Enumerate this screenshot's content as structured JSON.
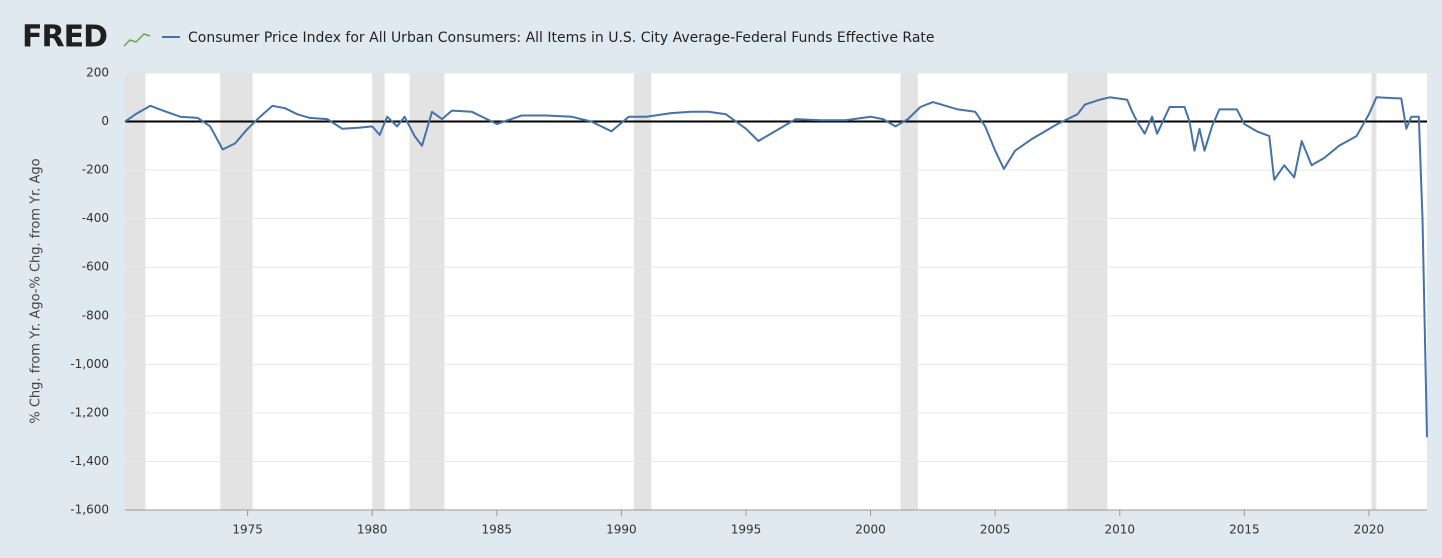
{
  "chart_data": {
    "type": "line",
    "logo": "FRED",
    "title": "Consumer Price Index for All Urban Consumers: All Items in U.S. City Average-Federal Funds Effective Rate",
    "y_label": "% Chg. from Yr. Ago-% Chg. from Yr. Ago",
    "xlim": [
      1970.08,
      2022.33
    ],
    "xticks": [
      1975,
      1980,
      1985,
      1990,
      1995,
      2000,
      2005,
      2010,
      2015,
      2020
    ],
    "ylim": [
      -1600,
      200
    ],
    "yticks": [
      200,
      0,
      -200,
      -400,
      -600,
      -800,
      {
        "value": -1000,
        "label": "-1,000"
      },
      {
        "value": -1200,
        "label": "-1,200"
      },
      {
        "value": -1400,
        "label": "-1,400"
      },
      {
        "value": -1600,
        "label": "-1,600"
      }
    ],
    "grid": true,
    "zero_line": true,
    "recessions": [
      [
        1969.9,
        1970.9
      ],
      [
        1973.9,
        1975.2
      ],
      [
        1980.0,
        1980.5
      ],
      [
        1981.5,
        1982.9
      ],
      [
        1990.5,
        1991.2
      ],
      [
        2001.2,
        2001.9
      ],
      [
        2007.9,
        2009.5
      ],
      [
        2020.1,
        2020.3
      ]
    ],
    "recession_color": "#e3e3e3",
    "series": [
      {
        "name": "Consumer Price Index for All Urban Consumers: All Items in U.S. City Average-Federal Funds Effective Rate",
        "color": "#4572a7",
        "x": [
          1970.08,
          1970.5,
          1971.1,
          1971.6,
          1972.3,
          1973.0,
          1973.5,
          1974.0,
          1974.5,
          1975.0,
          1975.5,
          1976.0,
          1976.5,
          1977.0,
          1977.5,
          1978.2,
          1978.8,
          1979.5,
          1980.0,
          1980.3,
          1980.6,
          1981.0,
          1981.3,
          1981.7,
          1982.0,
          1982.4,
          1982.8,
          1983.2,
          1984.0,
          1985.0,
          1986.0,
          1987.0,
          1988.0,
          1988.8,
          1989.6,
          1990.3,
          1991.0,
          1992.0,
          1992.8,
          1993.5,
          1994.2,
          1995.0,
          1995.5,
          1996.0,
          1997.0,
          1998.0,
          1999.0,
          2000.0,
          2000.5,
          2001.0,
          2001.5,
          2002.0,
          2002.5,
          2003.5,
          2004.2,
          2004.6,
          2005.0,
          2005.35,
          2005.8,
          2006.5,
          2007.5,
          2008.3,
          2008.6,
          2009.2,
          2009.6,
          2010.3,
          2010.5,
          2010.7,
          2011.0,
          2011.3,
          2011.5,
          2012.0,
          2012.6,
          2012.8,
          2013.0,
          2013.2,
          2013.4,
          2013.7,
          2014.0,
          2014.7,
          2015.0,
          2015.5,
          2016.0,
          2016.2,
          2016.6,
          2017.0,
          2017.3,
          2017.7,
          2018.2,
          2018.8,
          2019.5,
          2020.0,
          2020.3,
          2021.3,
          2021.5,
          2021.7,
          2022.0,
          2022.15,
          2022.33
        ],
        "values": [
          0,
          30,
          65,
          45,
          20,
          15,
          -20,
          -115,
          -90,
          -30,
          20,
          65,
          55,
          30,
          15,
          10,
          -30,
          -25,
          -20,
          -55,
          20,
          -20,
          20,
          -60,
          -100,
          40,
          10,
          45,
          40,
          -10,
          25,
          25,
          20,
          0,
          -40,
          20,
          20,
          35,
          40,
          40,
          30,
          -30,
          -80,
          -50,
          10,
          5,
          5,
          20,
          10,
          -20,
          10,
          60,
          80,
          50,
          40,
          -20,
          -120,
          -195,
          -120,
          -70,
          -10,
          30,
          70,
          90,
          100,
          90,
          40,
          0,
          -50,
          20,
          -50,
          60,
          60,
          0,
          -120,
          -30,
          -120,
          -20,
          50,
          50,
          -10,
          -40,
          -60,
          -240,
          -180,
          -230,
          -80,
          -180,
          -150,
          -100,
          -60,
          30,
          100,
          95,
          -30,
          20,
          20,
          -400,
          -1300
        ]
      }
    ]
  }
}
